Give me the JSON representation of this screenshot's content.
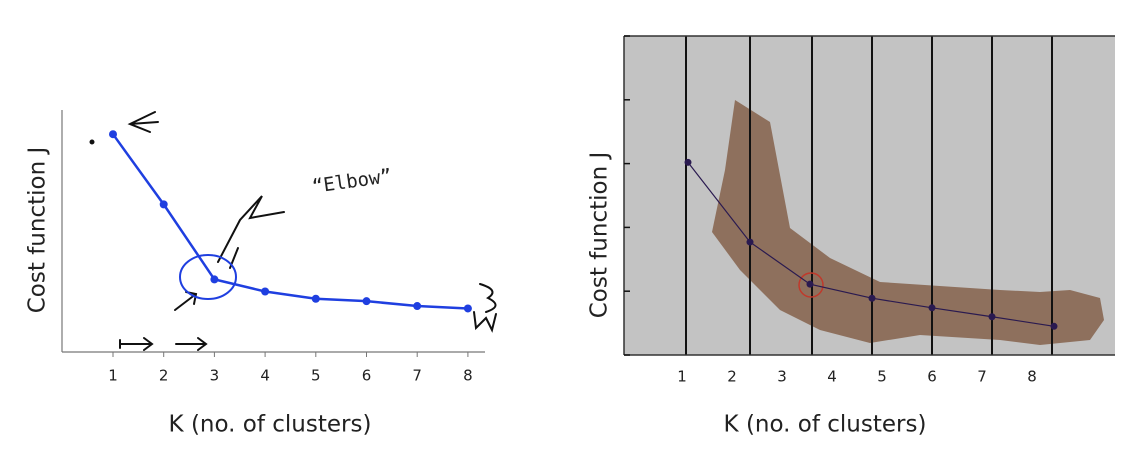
{
  "chart_data": [
    {
      "type": "line",
      "categories": [
        "1",
        "2",
        "3",
        "4",
        "5",
        "6",
        "7",
        "8"
      ],
      "values": [
        9.0,
        6.1,
        3.0,
        2.5,
        2.2,
        2.1,
        1.9,
        1.8
      ],
      "color": "#1f3fe0",
      "ylim": [
        0,
        10
      ],
      "ylabel": "Cost function J",
      "xlabel": "K (no. of clusters)",
      "annotation": "“Elbow”"
    },
    {
      "type": "line",
      "x": [
        1.12,
        2.36,
        3.56,
        4.8,
        6.0,
        7.2,
        8.44
      ],
      "values": [
        3.02,
        1.77,
        1.11,
        0.89,
        0.74,
        0.6,
        0.45
      ],
      "color": "#2a1a50",
      "xlim": [
        -0.16,
        9.66
      ],
      "xticks": [
        1,
        2,
        3,
        4,
        5,
        6,
        7,
        8
      ],
      "ylim": [
        0,
        5
      ],
      "yticks": [
        0,
        1,
        2,
        3,
        4,
        5
      ],
      "ylabel": "Cost function J",
      "xlabel": "K (no. of clusters)"
    }
  ]
}
